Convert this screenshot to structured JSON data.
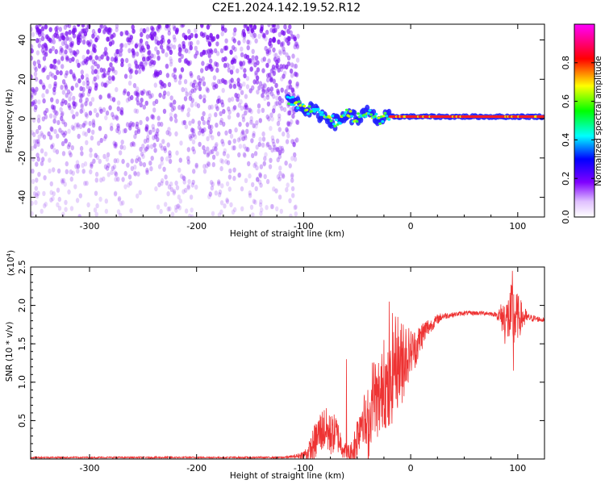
{
  "title": "C2E1.2024.142.19.52.R12",
  "colors": {
    "signal_line": "#ee3333",
    "scatter_dots": "#7a10f0",
    "axes": "#000000"
  },
  "chart_data": [
    {
      "type": "heatmap",
      "name": "spectrogram",
      "xlabel": "Height of straight line (km)",
      "ylabel": "Frequency (Hz)",
      "xlim": [
        -355,
        125
      ],
      "ylim": [
        -50,
        48
      ],
      "x_ticks": [
        -300,
        -200,
        -100,
        0,
        100
      ],
      "y_ticks": [
        -40,
        -20,
        0,
        20,
        40
      ],
      "colorbar": {
        "label": "Normalized spectral amplitude",
        "range": [
          0.0,
          1.0
        ],
        "ticks": [
          "0.0",
          "0.2",
          "0.4",
          "0.6",
          "0.8"
        ],
        "colormap": "rainbow (white, violet, blue, cyan, green, yellow, red, magenta)"
      },
      "features": [
        {
          "desc": "scattered noise",
          "x_range": [
            -355,
            -110
          ],
          "y_range": [
            -50,
            48
          ],
          "amplitude": 0.1
        },
        {
          "desc": "carrier trace",
          "points": [
            [
              -115,
              10
            ],
            [
              -100,
              6
            ],
            [
              -80,
              1
            ],
            [
              -70,
              -2
            ],
            [
              -60,
              2
            ],
            [
              -50,
              0
            ],
            [
              -40,
              3
            ],
            [
              -30,
              -1
            ],
            [
              -20,
              1
            ],
            [
              0,
              1
            ],
            [
              50,
              1
            ],
            [
              100,
              1
            ],
            [
              125,
              1
            ]
          ],
          "amplitude_range": [
            0.3,
            0.95
          ]
        }
      ]
    },
    {
      "type": "line",
      "name": "snr",
      "xlabel": "Height of straight line (km)",
      "ylabel": "SNR (10 * v/v)",
      "y_multiplier": "(x10^4)",
      "multiplier_base": "(x10",
      "multiplier_exp": "4",
      "multiplier_close": ")",
      "xlim": [
        -355,
        125
      ],
      "ylim": [
        0,
        2.5
      ],
      "x_ticks": [
        -300,
        -200,
        -100,
        0,
        100
      ],
      "y_ticks": [
        0.5,
        1.0,
        1.5,
        2.0,
        2.5
      ],
      "y_tick_labels": [
        "0.5",
        "1.0",
        "1.5",
        "2.0",
        "2.5"
      ],
      "series": [
        {
          "envelope_x": [
            -355,
            -120,
            -110,
            -105,
            -100,
            -95,
            -90,
            -85,
            -80,
            -75,
            -70,
            -65,
            -60,
            -55,
            -50,
            -45,
            -40,
            -35,
            -30,
            -25,
            -20,
            -15,
            -10,
            -5,
            0,
            5,
            10,
            15,
            20,
            25,
            30,
            40,
            50,
            60,
            70,
            80,
            85,
            90,
            95,
            100,
            110,
            125
          ],
          "envelope_y": [
            0.02,
            0.02,
            0.03,
            0.04,
            0.06,
            0.08,
            0.2,
            0.35,
            0.4,
            0.3,
            0.35,
            0.2,
            0.08,
            0.05,
            0.3,
            0.6,
            0.3,
            0.9,
            0.7,
            1.0,
            0.8,
            1.3,
            1.2,
            1.35,
            1.4,
            1.45,
            1.6,
            1.7,
            1.75,
            1.82,
            1.86,
            1.88,
            1.9,
            1.9,
            1.9,
            1.88,
            1.85,
            1.82,
            1.83,
            1.85,
            1.84,
            1.81
          ],
          "noise_x": [
            -355,
            -120,
            -110,
            -100,
            -90,
            -80,
            -70,
            -60,
            -50,
            -40,
            -35,
            -30,
            -20,
            -10,
            -5,
            0,
            10,
            20,
            30,
            40,
            80,
            85,
            90,
            95,
            100,
            110,
            125
          ],
          "noise_y": [
            0.01,
            0.01,
            0.02,
            0.05,
            0.25,
            0.3,
            0.25,
            0.1,
            0.3,
            0.4,
            0.5,
            0.5,
            0.6,
            0.6,
            0.5,
            0.3,
            0.2,
            0.08,
            0.05,
            0.03,
            0.03,
            0.2,
            0.3,
            0.5,
            0.3,
            0.05,
            0.03
          ],
          "spikes": [
            [
              -20,
              2.05
            ],
            [
              -17,
              1.9
            ],
            [
              -12,
              1.85
            ],
            [
              -7,
              1.75
            ],
            [
              -2,
              1.5
            ],
            [
              95,
              2.45
            ],
            [
              96,
              1.15
            ],
            [
              88,
              1.5
            ],
            [
              -25,
              1.55
            ],
            [
              -30,
              1.25
            ],
            [
              -60,
              1.3
            ],
            [
              -75,
              0.55
            ],
            [
              -40,
              0.9
            ]
          ]
        }
      ]
    }
  ]
}
